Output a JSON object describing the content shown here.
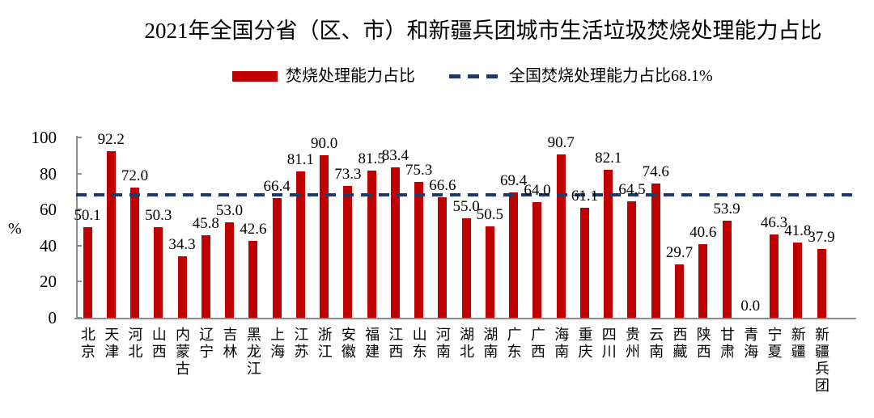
{
  "chart_title": "2021年全国分省（区、市）和新疆兵团城市生活垃圾焚烧处理能力占比",
  "legend": {
    "bar_label": "焚烧处理能力占比",
    "line_label": "全国焚烧处理能力占比68.1%"
  },
  "chart_data": {
    "type": "bar",
    "title": "2021年全国分省（区、市）和新疆兵团城市生活垃圾焚烧处理能力占比",
    "xlabel": "",
    "ylabel": "%",
    "ylim": [
      0,
      100
    ],
    "yticks": [
      0,
      20,
      40,
      60,
      80,
      100
    ],
    "grid": false,
    "legend_position": "top",
    "categories": [
      "北京",
      "天津",
      "河北",
      "山西",
      "内蒙古",
      "辽宁",
      "吉林",
      "黑龙江",
      "上海",
      "江苏",
      "浙江",
      "安徽",
      "福建",
      "江西",
      "山东",
      "河南",
      "湖北",
      "湖南",
      "广东",
      "广西",
      "海南",
      "重庆",
      "四川",
      "贵州",
      "云南",
      "西藏",
      "陕西",
      "甘肃",
      "青海",
      "宁夏",
      "新疆",
      "新疆兵团"
    ],
    "series": [
      {
        "name": "焚烧处理能力占比",
        "values": [
          50.1,
          92.2,
          72.0,
          50.3,
          34.3,
          45.8,
          53.0,
          42.6,
          66.4,
          81.1,
          90.0,
          73.3,
          81.5,
          83.4,
          75.3,
          66.6,
          55.0,
          50.5,
          69.4,
          64.0,
          90.7,
          61.1,
          82.1,
          64.5,
          74.6,
          29.7,
          40.6,
          53.9,
          0.0,
          46.3,
          41.8,
          37.9
        ]
      }
    ],
    "reference_line": {
      "name": "全国焚烧处理能力占比68.1%",
      "value": 68.1
    },
    "colors": {
      "bar": "#C00000",
      "reference_line": "#1F3864",
      "axis": "#8C8C8C",
      "label_text": "#000000"
    }
  }
}
